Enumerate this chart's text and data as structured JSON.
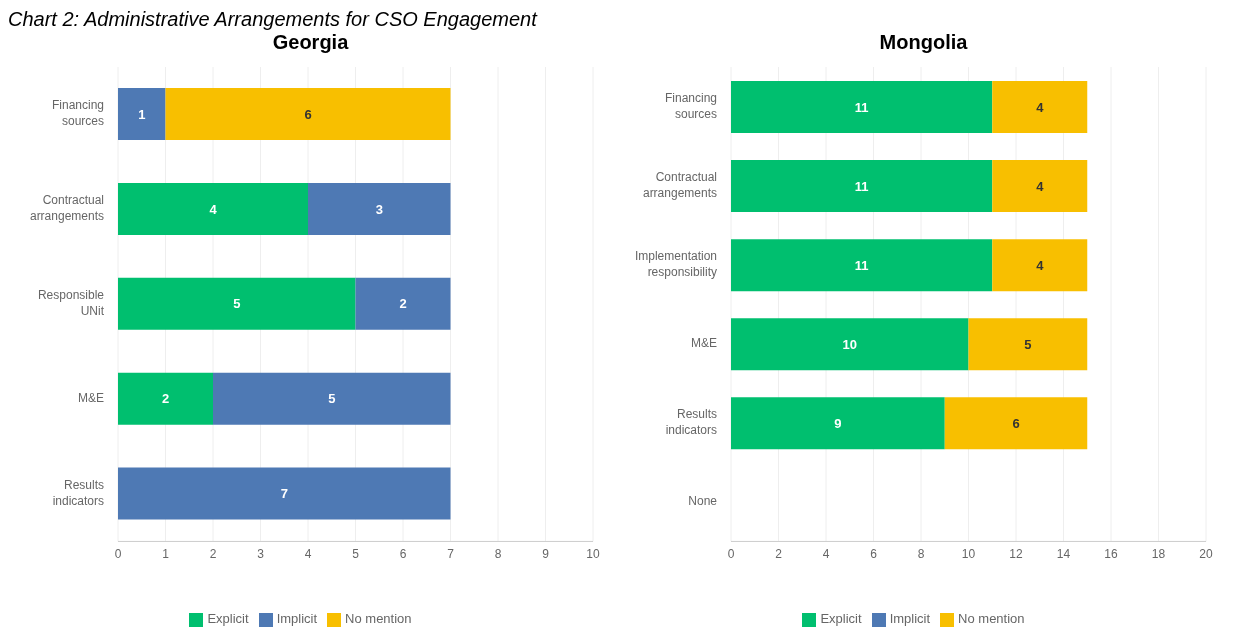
{
  "chart_data": [
    {
      "type": "bar",
      "title": "Georgia",
      "orientation": "horizontal",
      "stacked": true,
      "data_labels": true,
      "grid": "x",
      "legend": "bottom",
      "annotations": [
        "Chart 2: Administrative Arrangements for CSO Engagement"
      ],
      "categories": [
        "Financing sources",
        "Contractual arrangements",
        "Responsible UNit",
        "M&E",
        "Results indicators"
      ],
      "xlim": [
        0,
        10
      ],
      "xticks": [
        0,
        1,
        2,
        3,
        4,
        5,
        6,
        7,
        8,
        9,
        10
      ],
      "series": [
        {
          "name": "Explicit",
          "color": "#00bf6f",
          "values": [
            null,
            4,
            5,
            2,
            null
          ]
        },
        {
          "name": "Implicit",
          "color": "#4e79b4",
          "values": [
            1,
            3,
            2,
            5,
            7
          ]
        },
        {
          "name": "No mention",
          "color": "#f8bf00",
          "values": [
            6,
            null,
            null,
            null,
            null
          ]
        }
      ]
    },
    {
      "type": "bar",
      "title": "Mongolia",
      "orientation": "horizontal",
      "stacked": true,
      "data_labels": true,
      "grid": "x",
      "legend": "bottom",
      "categories": [
        "Financing sources",
        "Contractual arrangements",
        "Implementation responsibility",
        "M&E",
        "Results indicators",
        "None"
      ],
      "xlim": [
        0,
        20
      ],
      "xticks": [
        0,
        2,
        4,
        6,
        8,
        10,
        12,
        14,
        16,
        18,
        20
      ],
      "series": [
        {
          "name": "Explicit",
          "color": "#00bf6f",
          "values": [
            11,
            11,
            11,
            10,
            9,
            null
          ]
        },
        {
          "name": "Implicit",
          "color": "#4e79b4",
          "values": [
            null,
            null,
            null,
            null,
            null,
            null
          ]
        },
        {
          "name": "No mention",
          "color": "#f8bf00",
          "values": [
            4,
            4,
            4,
            5,
            6,
            null
          ]
        }
      ]
    }
  ]
}
